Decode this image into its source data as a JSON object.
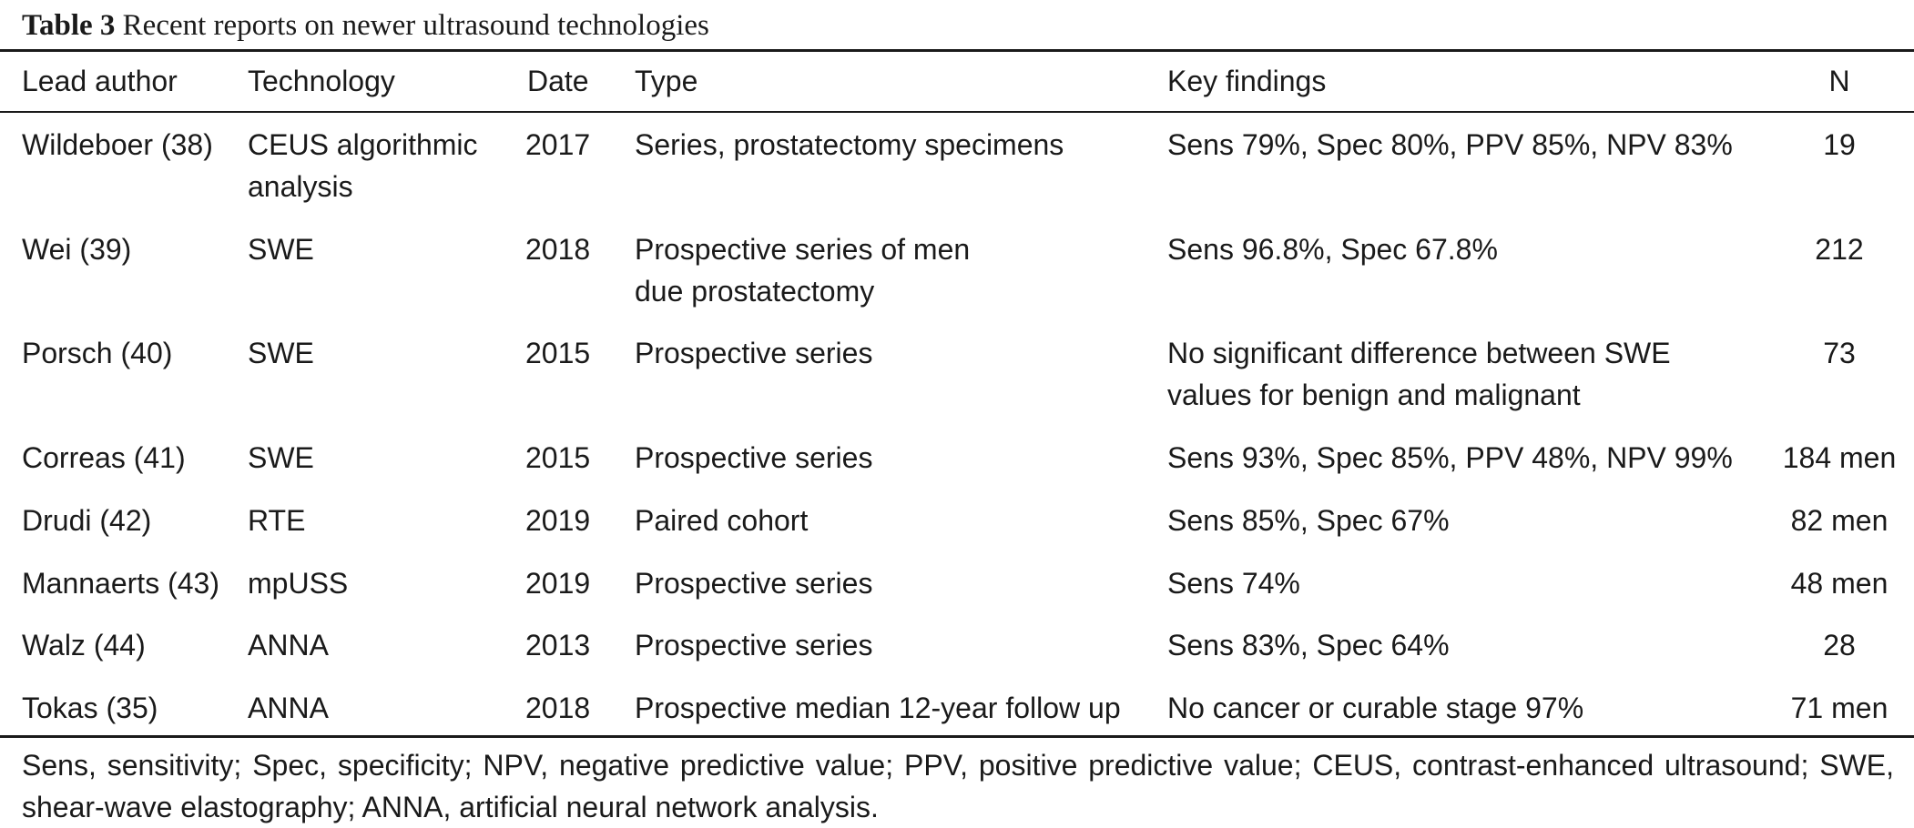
{
  "caption": {
    "label": "Table 3",
    "title": "Recent reports on newer ultrasound technologies"
  },
  "headers": {
    "author": "Lead author",
    "technology": "Technology",
    "date": "Date",
    "type": "Type",
    "findings": "Key findings",
    "n": "N"
  },
  "rows": [
    {
      "author": "Wildeboer (38)",
      "technology": "CEUS algorithmic\nanalysis",
      "date": "2017",
      "type": "Series, prostatectomy specimens",
      "findings": "Sens 79%, Spec 80%, PPV 85%, NPV 83%",
      "n": "19"
    },
    {
      "author": "Wei (39)",
      "technology": "SWE",
      "date": "2018",
      "type": "Prospective series of men\ndue prostatectomy",
      "findings": "Sens 96.8%, Spec 67.8%",
      "n": "212"
    },
    {
      "author": "Porsch (40)",
      "technology": "SWE",
      "date": "2015",
      "type": "Prospective series",
      "findings": "No significant difference between SWE\nvalues for benign and malignant",
      "n": "73"
    },
    {
      "author": "Correas (41)",
      "technology": "SWE",
      "date": "2015",
      "type": "Prospective series",
      "findings": "Sens 93%, Spec 85%, PPV 48%, NPV 99%",
      "n": "184 men"
    },
    {
      "author": "Drudi (42)",
      "technology": "RTE",
      "date": "2019",
      "type": "Paired cohort",
      "findings": "Sens 85%, Spec 67%",
      "n": "82 men"
    },
    {
      "author": "Mannaerts (43)",
      "technology": "mpUSS",
      "date": "2019",
      "type": "Prospective series",
      "findings": "Sens 74%",
      "n": "48 men"
    },
    {
      "author": "Walz (44)",
      "technology": "ANNA",
      "date": "2013",
      "type": "Prospective series",
      "findings": "Sens 83%, Spec 64%",
      "n": "28"
    },
    {
      "author": "Tokas (35)",
      "technology": "ANNA",
      "date": "2018",
      "type": "Prospective median 12-year follow up",
      "findings": "No cancer or curable stage 97%",
      "n": "71 men"
    }
  ],
  "footnote": "Sens, sensitivity; Spec, specificity; NPV, negative predictive value; PPV, positive predictive value; CEUS, contrast-enhanced ultrasound; SWE, shear-wave elastography; ANNA, artificial neural network analysis."
}
